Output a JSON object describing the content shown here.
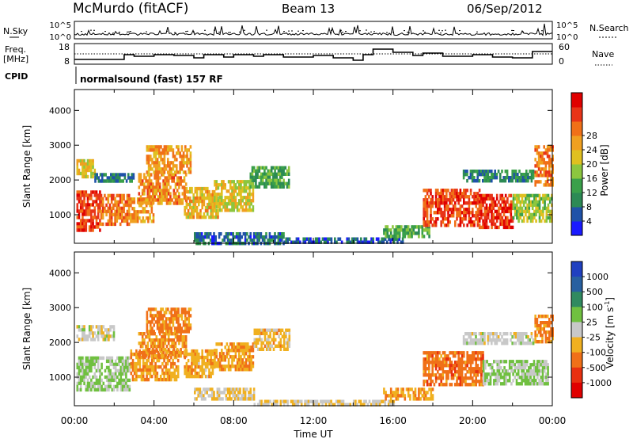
{
  "header": {
    "station": "McMurdo (fitACF)",
    "beam": "Beam 13",
    "date": "06/Sep/2012"
  },
  "noise_panel": {
    "left_label": "N.Sky",
    "right_label": "N.Search",
    "ticks_left": [
      "10^5",
      "10^0"
    ],
    "ticks_right": [
      "10^5",
      "10^0"
    ]
  },
  "freq_panel": {
    "left_label_line1": "Freq.",
    "left_label_line2": "[MHz]",
    "right_label": "Nave",
    "ticks_left": [
      "18",
      "8"
    ],
    "ticks_right": [
      "60",
      "0"
    ]
  },
  "cpid": {
    "label": "CPID",
    "value": "normalsound (fast) 157 RF"
  },
  "chart_data": [
    {
      "type": "heatmap",
      "name": "power",
      "xlabel": "",
      "ylabel": "Slant Range [km]",
      "xlim": [
        0,
        24
      ],
      "ylim": [
        180,
        4600
      ],
      "yticks": [
        "1000",
        "2000",
        "3000",
        "4000"
      ],
      "colorbar": {
        "label": "Power [dB]",
        "ticks": [
          "4",
          "8",
          "12",
          "16",
          "20",
          "24",
          "28"
        ],
        "colors": [
          "#1a1aff",
          "#1f52a8",
          "#2c8a55",
          "#3aa04a",
          "#8cc63f",
          "#e0c020",
          "#f0a020",
          "#f07018",
          "#e83418",
          "#e00000"
        ],
        "range": [
          0,
          30
        ]
      },
      "regions": [
        {
          "t": [
            0.1,
            1.3
          ],
          "r": [
            600,
            1700
          ],
          "v": 25
        },
        {
          "t": [
            1.3,
            2.7
          ],
          "r": [
            750,
            1600
          ],
          "v": 22
        },
        {
          "t": [
            2.7,
            4.0
          ],
          "r": [
            800,
            1500
          ],
          "v": 20
        },
        {
          "t": [
            3.2,
            5.6
          ],
          "r": [
            1300,
            2200
          ],
          "v": 21
        },
        {
          "t": [
            3.6,
            5.8
          ],
          "r": [
            2200,
            3000
          ],
          "v": 20
        },
        {
          "t": [
            5.5,
            7.2
          ],
          "r": [
            900,
            1800
          ],
          "v": 18
        },
        {
          "t": [
            7.0,
            9.0
          ],
          "r": [
            1100,
            2000
          ],
          "v": 16
        },
        {
          "t": [
            8.8,
            10.8
          ],
          "r": [
            1800,
            2400
          ],
          "v": 10
        },
        {
          "t": [
            0.1,
            1.0
          ],
          "r": [
            2100,
            2600
          ],
          "v": 17
        },
        {
          "t": [
            1.0,
            3.0
          ],
          "r": [
            2000,
            2200
          ],
          "v": 7
        },
        {
          "t": [
            6.0,
            10.5
          ],
          "r": [
            200,
            500
          ],
          "v": 6
        },
        {
          "t": [
            10.5,
            16.5
          ],
          "r": [
            200,
            350
          ],
          "v": 5
        },
        {
          "t": [
            15.5,
            17.8
          ],
          "r": [
            350,
            700
          ],
          "v": 11
        },
        {
          "t": [
            17.5,
            20.3
          ],
          "r": [
            700,
            1750
          ],
          "v": 25
        },
        {
          "t": [
            20.3,
            22.0
          ],
          "r": [
            600,
            1600
          ],
          "v": 26
        },
        {
          "t": [
            22.0,
            24.0
          ],
          "r": [
            800,
            1600
          ],
          "v": 14
        },
        {
          "t": [
            19.5,
            23.0
          ],
          "r": [
            2000,
            2300
          ],
          "v": 8
        },
        {
          "t": [
            23.1,
            24.0
          ],
          "r": [
            1900,
            3000
          ],
          "v": 22
        }
      ]
    },
    {
      "type": "heatmap",
      "name": "velocity",
      "xlabel": "Time UT",
      "ylabel": "Slant Range [km]",
      "xlim": [
        0,
        24
      ],
      "ylim": [
        180,
        4600
      ],
      "xticks": [
        "00:00",
        "04:00",
        "08:00",
        "12:00",
        "16:00",
        "20:00",
        "00:00"
      ],
      "yticks": [
        "1000",
        "2000",
        "3000",
        "4000"
      ],
      "colorbar": {
        "label": "Velocity [m s",
        "label_sup": "-1",
        "label_end": "]",
        "ticks": [
          "1000",
          "500",
          "100",
          "25",
          "-25",
          "-100",
          "-500",
          "-1000"
        ],
        "colors": [
          "#2040c0",
          "#2860a0",
          "#308a60",
          "#70c040",
          "#c8c8c8",
          "#f0b020",
          "#f07018",
          "#e83010",
          "#e00000"
        ],
        "range": [
          -1000,
          1000
        ]
      },
      "regions": [
        {
          "t": [
            0.1,
            2.8
          ],
          "r": [
            600,
            1600
          ],
          "v": 150
        },
        {
          "t": [
            2.8,
            5.2
          ],
          "r": [
            900,
            1800
          ],
          "v": -300
        },
        {
          "t": [
            3.2,
            5.6
          ],
          "r": [
            1600,
            2300
          ],
          "v": -350
        },
        {
          "t": [
            3.6,
            5.8
          ],
          "r": [
            2300,
            3000
          ],
          "v": -400
        },
        {
          "t": [
            5.5,
            7.0
          ],
          "r": [
            1000,
            1800
          ],
          "v": -250
        },
        {
          "t": [
            7.0,
            9.0
          ],
          "r": [
            1200,
            2000
          ],
          "v": -300
        },
        {
          "t": [
            9.0,
            10.8
          ],
          "r": [
            1800,
            2400
          ],
          "v": -200
        },
        {
          "t": [
            0.1,
            2.0
          ],
          "r": [
            2100,
            2500
          ],
          "v": 0
        },
        {
          "t": [
            6.0,
            9.0
          ],
          "r": [
            350,
            700
          ],
          "v": -100
        },
        {
          "t": [
            9.0,
            16.0
          ],
          "r": [
            200,
            350
          ],
          "v": -100
        },
        {
          "t": [
            15.5,
            18.0
          ],
          "r": [
            350,
            700
          ],
          "v": -300
        },
        {
          "t": [
            17.5,
            20.5
          ],
          "r": [
            750,
            1750
          ],
          "v": -450
        },
        {
          "t": [
            20.5,
            23.8
          ],
          "r": [
            800,
            1500
          ],
          "v": 150
        },
        {
          "t": [
            19.5,
            23.0
          ],
          "r": [
            2000,
            2300
          ],
          "v": 0
        },
        {
          "t": [
            23.1,
            24.0
          ],
          "r": [
            2000,
            2800
          ],
          "v": -400
        }
      ]
    }
  ]
}
